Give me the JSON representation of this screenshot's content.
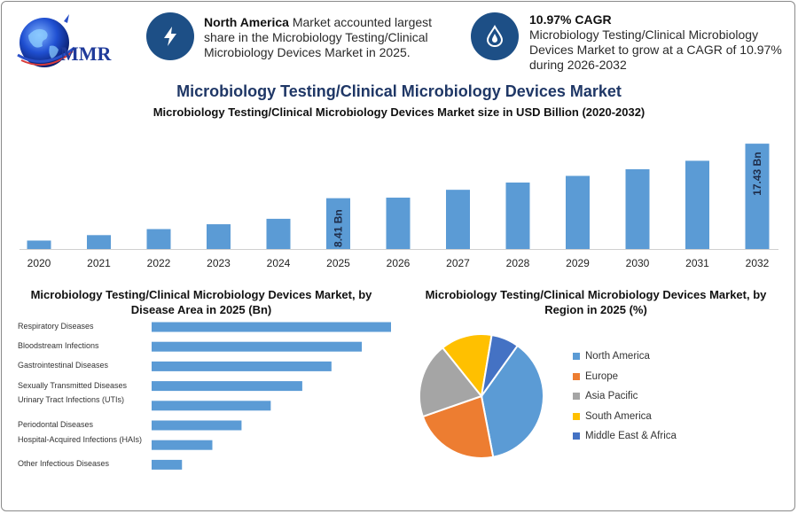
{
  "logo": {
    "text": "MMR"
  },
  "header": {
    "item1": {
      "icon": "lightning-icon",
      "bold": "North America",
      "text": " Market accounted largest share in the Microbiology Testing/Clinical Microbiology Devices Market in 2025."
    },
    "item2": {
      "icon": "drop-icon",
      "bold": "10.97% CAGR",
      "text": "Microbiology Testing/Clinical Microbiology Devices Market to grow at a CAGR of 10.97% during 2026-2032"
    }
  },
  "title": "Microbiology Testing/Clinical Microbiology Devices Market",
  "colors": {
    "bar": "#5b9bd5",
    "title": "#1f3766",
    "badge": "#1d4f86"
  },
  "chart_data": [
    {
      "type": "bar",
      "title": "Microbiology Testing/Clinical Microbiology Devices Market size in USD Billion (2020-2032)",
      "categories": [
        "2020",
        "2021",
        "2022",
        "2023",
        "2024",
        "2025",
        "2026",
        "2027",
        "2028",
        "2029",
        "2030",
        "2031",
        "2032"
      ],
      "values": [
        1.4,
        2.3,
        3.3,
        4.1,
        5.0,
        8.41,
        8.5,
        9.8,
        11.0,
        12.1,
        13.2,
        14.6,
        17.43
      ],
      "data_labels": {
        "2025": "8.41 Bn",
        "2032": "17.43 Bn"
      },
      "ylim": [
        0,
        19.5
      ]
    },
    {
      "type": "bar",
      "orientation": "horizontal",
      "title": "Microbiology Testing/Clinical Microbiology Devices Market, by Disease Area in 2025 (Bn)",
      "categories": [
        "Respiratory Diseases",
        "Bloodstream Infections",
        "Gastrointestinal Diseases",
        "Sexually Transmitted Diseases",
        "Urinary Tract Infections (UTIs)",
        "Periodontal Diseases",
        "Hospital-Acquired Infections (HAIs)",
        "Other Infectious Diseases"
      ],
      "values": [
        2.05,
        1.8,
        1.54,
        1.29,
        1.02,
        0.77,
        0.52,
        0.26
      ]
    },
    {
      "type": "pie",
      "title": "Microbiology Testing/Clinical Microbiology Devices Market, by Region in 2025 (%)",
      "labels": [
        "North America",
        "Europe",
        "Asia Pacific",
        "South America",
        "Middle East & Africa"
      ],
      "values": [
        36,
        22,
        19,
        13,
        7
      ],
      "colors": [
        "#5b9bd5",
        "#ed7d31",
        "#a5a5a5",
        "#ffc000",
        "#4472c4"
      ],
      "legend_position": "right"
    }
  ]
}
